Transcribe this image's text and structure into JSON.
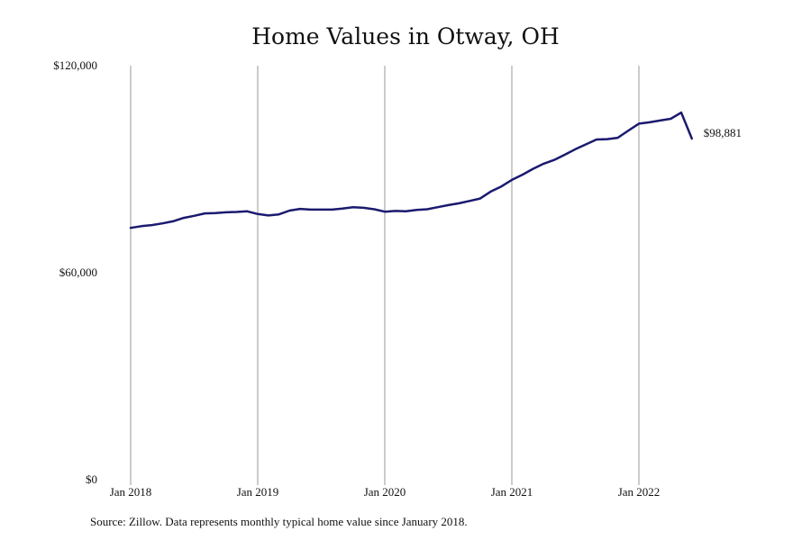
{
  "chart_data": {
    "type": "line",
    "title": "Home Values in Otway, OH",
    "xlabel": "",
    "ylabel": "",
    "ylim": [
      0,
      120000
    ],
    "y_ticks": [
      0,
      60000,
      120000
    ],
    "y_tick_labels": [
      "$0",
      "$60,000",
      "$120,000"
    ],
    "x_ticks": [
      "2018-01",
      "2019-01",
      "2020-01",
      "2021-01",
      "2022-01"
    ],
    "x_tick_labels": [
      "Jan 2018",
      "Jan 2019",
      "Jan 2020",
      "Jan 2021",
      "Jan 2022"
    ],
    "grid": "vertical",
    "line_color": "#1b1a6e",
    "end_label": "$98,881",
    "series": [
      {
        "x": [
          "2018-01",
          "2018-02",
          "2018-03",
          "2018-04",
          "2018-05",
          "2018-06",
          "2018-07",
          "2018-08",
          "2018-09",
          "2018-10",
          "2018-11",
          "2018-12",
          "2019-01",
          "2019-02",
          "2019-03",
          "2019-04",
          "2019-05",
          "2019-06",
          "2019-07",
          "2019-08",
          "2019-09",
          "2019-10",
          "2019-11",
          "2019-12",
          "2020-01",
          "2020-02",
          "2020-03",
          "2020-04",
          "2020-05",
          "2020-06",
          "2020-07",
          "2020-08",
          "2020-09",
          "2020-10",
          "2020-11",
          "2020-12",
          "2021-01",
          "2021-02",
          "2021-03",
          "2021-04",
          "2021-05",
          "2021-06",
          "2021-07",
          "2021-08",
          "2021-09",
          "2021-10",
          "2021-11",
          "2021-12",
          "2022-01",
          "2022-02",
          "2022-03",
          "2022-04",
          "2022-05",
          "2022-06"
        ],
        "values": [
          73000,
          73500,
          73800,
          74300,
          74900,
          75900,
          76500,
          77200,
          77300,
          77500,
          77600,
          77800,
          77000,
          76600,
          76900,
          78000,
          78500,
          78300,
          78300,
          78300,
          78600,
          79000,
          78800,
          78400,
          77700,
          77900,
          77800,
          78200,
          78400,
          79000,
          79600,
          80100,
          80800,
          81500,
          83500,
          85000,
          86900,
          88400,
          90100,
          91600,
          92700,
          94200,
          95800,
          97200,
          98600,
          98700,
          99100,
          101200,
          103200,
          103600,
          104100,
          104600,
          106400,
          98881
        ]
      }
    ],
    "source": "Source: Zillow. Data represents monthly typical home value since January 2018."
  }
}
